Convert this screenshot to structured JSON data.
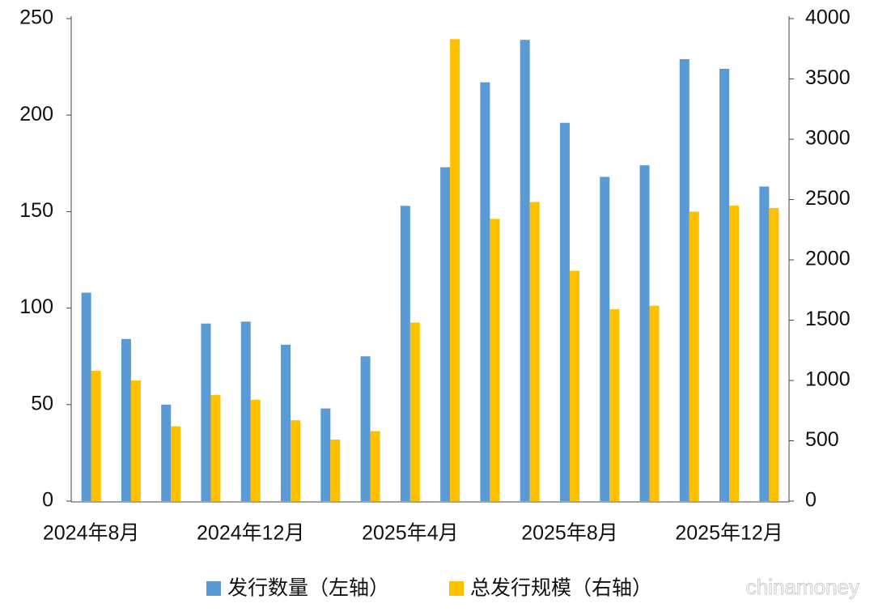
{
  "chart_data": {
    "type": "bar",
    "categories": [
      "2024年8月",
      null,
      null,
      null,
      "2024年12月",
      null,
      null,
      null,
      "2025年4月",
      null,
      null,
      null,
      "2025年8月",
      null,
      null,
      null,
      "2025年12月",
      null
    ],
    "series": [
      {
        "name": "发行数量（左轴）",
        "color": "#5b9bd5",
        "axis": "y",
        "values": [
          108,
          84,
          50,
          92,
          93,
          81,
          48,
          75,
          153,
          173,
          217,
          239,
          196,
          168,
          174,
          229,
          224,
          163
        ]
      },
      {
        "name": "总发行规模（右轴）",
        "color": "#ffc000",
        "axis": "y2",
        "values": [
          1080,
          1000,
          620,
          880,
          840,
          670,
          510,
          580,
          1480,
          3830,
          2340,
          2480,
          1910,
          1590,
          1620,
          2400,
          2450,
          2430
        ]
      }
    ],
    "ylim": [
      0,
      250
    ],
    "yticks": [
      0,
      50,
      100,
      150,
      200,
      250
    ],
    "y2lim": [
      0,
      4000
    ],
    "y2ticks": [
      0,
      500,
      1000,
      1500,
      2000,
      2500,
      3000,
      3500,
      4000
    ],
    "legend": "bottom",
    "watermark": "chinamoney"
  }
}
